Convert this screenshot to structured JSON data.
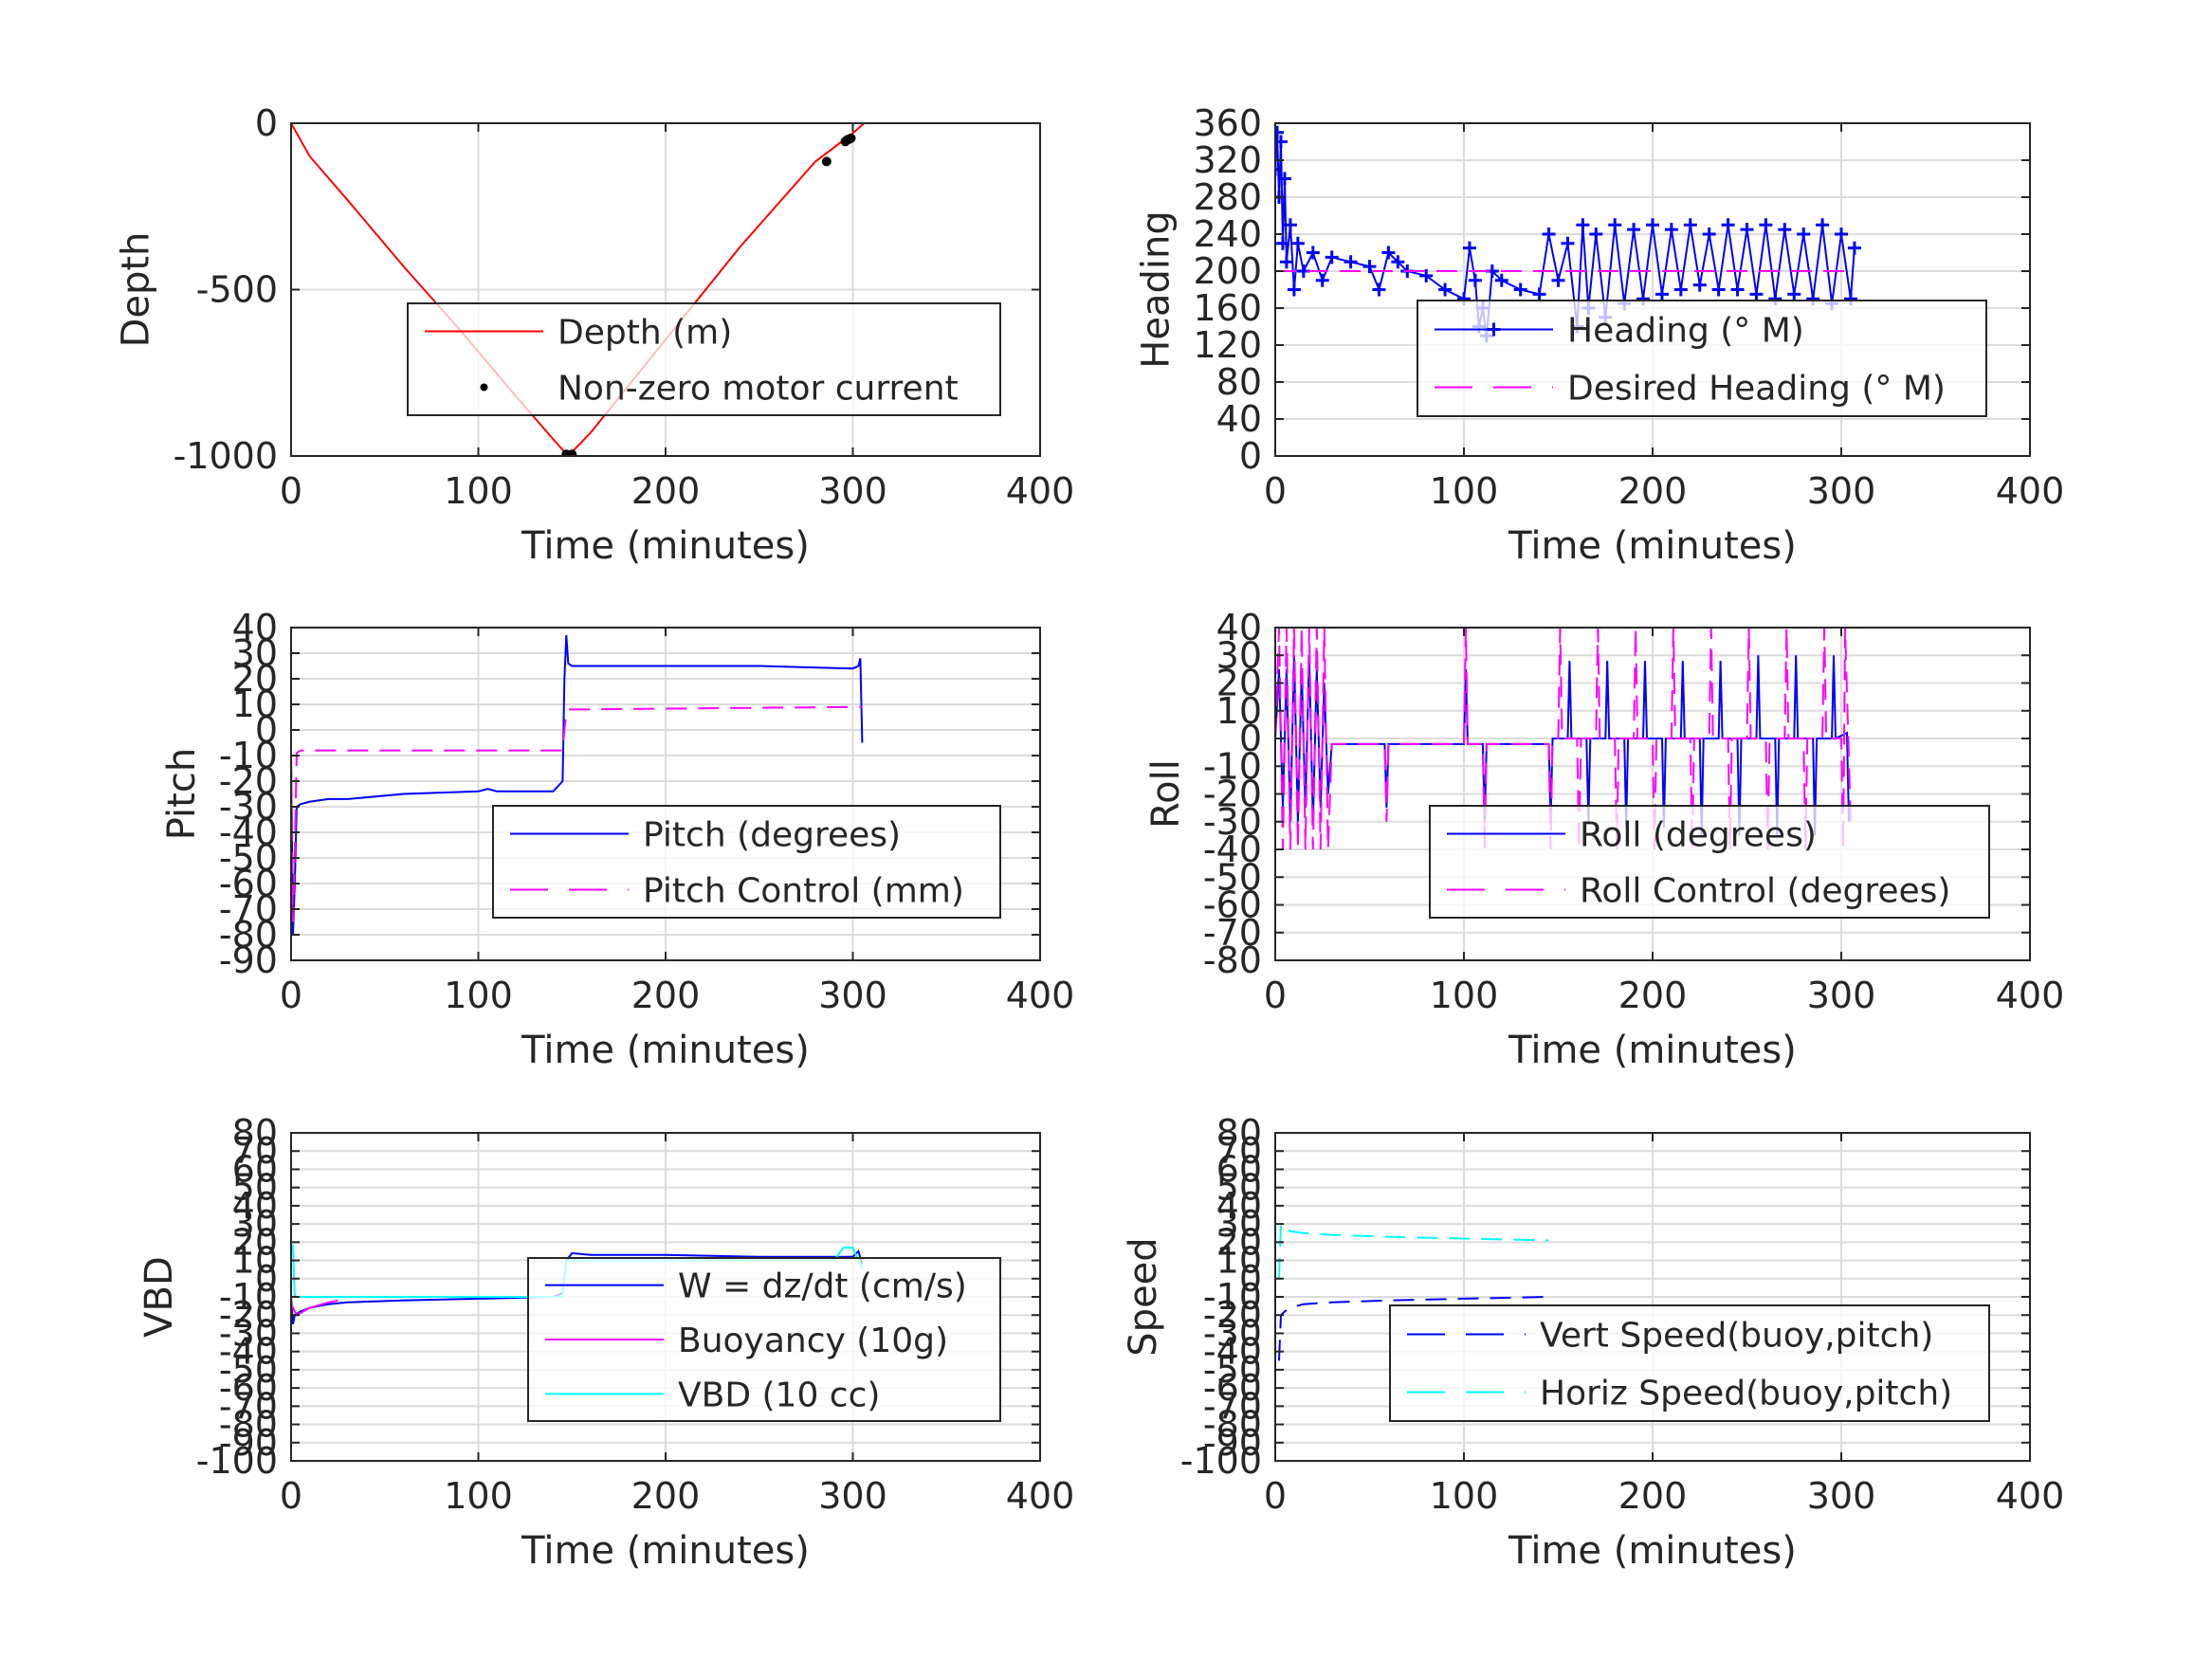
{
  "chart_data": [
    {
      "type": "line",
      "xlabel": "Time (minutes)",
      "ylabel": "Depth",
      "xlim": [
        0,
        400
      ],
      "ylim": [
        -1000,
        0
      ],
      "xticks": [
        0,
        100,
        200,
        300,
        400
      ],
      "yticks": [
        0,
        -500,
        -1000
      ],
      "legend": "center-right",
      "grid": true,
      "series": [
        {
          "name": "Depth (m)",
          "color": "#ff0000",
          "style": "solid",
          "x": [
            0,
            10,
            30,
            60,
            90,
            120,
            140,
            148,
            160,
            200,
            240,
            280,
            300,
            306
          ],
          "y": [
            0,
            -100,
            -230,
            -430,
            -620,
            -820,
            -950,
            -1000,
            -930,
            -650,
            -370,
            -115,
            -30,
            0
          ]
        },
        {
          "name": "Non-zero motor current",
          "color": "#000000",
          "style": "dots",
          "x": [
            147,
            148,
            149,
            150,
            286,
            296,
            297,
            298,
            299
          ],
          "y": [
            -995,
            -1000,
            -1000,
            -995,
            -115,
            -55,
            -50,
            -48,
            -45
          ]
        }
      ]
    },
    {
      "type": "line",
      "xlabel": "Time (minutes)",
      "ylabel": "Heading",
      "xlim": [
        0,
        400
      ],
      "ylim": [
        0,
        360
      ],
      "xticks": [
        0,
        100,
        200,
        300,
        400
      ],
      "yticks": [
        0,
        40,
        80,
        120,
        160,
        200,
        240,
        280,
        320,
        360
      ],
      "legend": "center-right",
      "grid": true,
      "series": [
        {
          "name": "Heading (° M)",
          "color": "#0000ff",
          "style": "plus",
          "x": [
            0,
            1,
            2,
            3,
            4,
            5,
            6,
            8,
            10,
            12,
            15,
            20,
            25,
            30,
            40,
            50,
            55,
            60,
            65,
            70,
            80,
            90,
            100,
            103,
            106,
            108,
            110,
            112,
            115,
            120,
            130,
            140,
            145,
            150,
            155,
            160,
            163,
            166,
            170,
            175,
            180,
            185,
            190,
            195,
            200,
            205,
            210,
            215,
            220,
            225,
            230,
            235,
            240,
            245,
            250,
            255,
            260,
            265,
            270,
            275,
            280,
            285,
            290,
            295,
            300,
            305,
            307
          ],
          "y": [
            310,
            350,
            280,
            340,
            230,
            300,
            210,
            250,
            180,
            230,
            200,
            220,
            190,
            215,
            210,
            205,
            180,
            220,
            210,
            200,
            195,
            180,
            170,
            225,
            190,
            140,
            160,
            130,
            200,
            190,
            180,
            175,
            240,
            190,
            230,
            140,
            250,
            160,
            240,
            150,
            250,
            165,
            245,
            170,
            250,
            175,
            245,
            180,
            250,
            185,
            240,
            180,
            250,
            180,
            245,
            175,
            250,
            170,
            245,
            175,
            240,
            170,
            250,
            165,
            240,
            170,
            225
          ]
        },
        {
          "name": "Desired Heading (° M)",
          "color": "#ff00ff",
          "style": "dashed",
          "x": [
            0,
            307
          ],
          "y": [
            200,
            200
          ]
        }
      ]
    },
    {
      "type": "line",
      "xlabel": "Time (minutes)",
      "ylabel": "Pitch",
      "xlim": [
        0,
        400
      ],
      "ylim": [
        -90,
        40
      ],
      "xticks": [
        0,
        100,
        200,
        300,
        400
      ],
      "yticks": [
        40,
        30,
        20,
        10,
        0,
        -10,
        -20,
        -30,
        -40,
        -50,
        -60,
        -70,
        -80,
        -90
      ],
      "legend": "center-right",
      "grid": true,
      "series": [
        {
          "name": "Pitch (degrees)",
          "color": "#0000ff",
          "style": "solid",
          "x": [
            0,
            1,
            2,
            3,
            5,
            10,
            20,
            30,
            60,
            100,
            105,
            110,
            140,
            145,
            146,
            147,
            148,
            150,
            160,
            200,
            250,
            300,
            303,
            304,
            305
          ],
          "y": [
            -10,
            -80,
            -60,
            -30,
            -29,
            -28,
            -27,
            -27,
            -25,
            -24,
            -23,
            -24,
            -24,
            -20,
            20,
            37,
            26,
            25,
            25,
            25,
            25,
            24,
            25,
            28,
            -5
          ]
        },
        {
          "name": "Pitch Control (mm)",
          "color": "#ff00ff",
          "style": "dashed",
          "x": [
            0,
            1,
            2,
            3,
            5,
            145,
            146,
            147,
            148,
            150,
            305
          ],
          "y": [
            -10,
            -75,
            -50,
            -9,
            -8,
            -8,
            0,
            7,
            8,
            8,
            9
          ]
        }
      ]
    },
    {
      "type": "line",
      "xlabel": "Time (minutes)",
      "ylabel": "Roll",
      "xlim": [
        0,
        400
      ],
      "ylim": [
        -80,
        40
      ],
      "xticks": [
        0,
        100,
        200,
        300,
        400
      ],
      "yticks": [
        40,
        30,
        20,
        10,
        0,
        -10,
        -20,
        -30,
        -40,
        -50,
        -60,
        -70,
        -80
      ],
      "legend": "center-right",
      "grid": true,
      "series": [
        {
          "name": "Roll (degrees)",
          "color": "#0000ff",
          "style": "solid",
          "x": [
            0,
            2,
            4,
            6,
            8,
            10,
            12,
            14,
            16,
            18,
            20,
            22,
            24,
            26,
            28,
            30,
            58,
            59,
            60,
            100,
            101,
            102,
            110,
            111,
            112,
            145,
            146,
            147,
            155,
            156,
            157,
            165,
            166,
            167,
            175,
            176,
            177,
            185,
            186,
            187,
            195,
            196,
            197,
            205,
            206,
            207,
            215,
            216,
            217,
            225,
            226,
            227,
            235,
            236,
            237,
            245,
            246,
            247,
            255,
            256,
            257,
            265,
            266,
            267,
            275,
            276,
            277,
            285,
            286,
            287,
            295,
            296,
            297,
            303,
            304
          ],
          "y": [
            0,
            25,
            -25,
            25,
            -30,
            30,
            -30,
            25,
            -25,
            30,
            -30,
            25,
            -25,
            20,
            -20,
            -2,
            -2,
            -25,
            -2,
            -2,
            25,
            -2,
            -2,
            -30,
            -2,
            -2,
            -30,
            0,
            0,
            28,
            0,
            0,
            -30,
            0,
            0,
            28,
            0,
            0,
            -32,
            0,
            0,
            28,
            0,
            0,
            -32,
            0,
            0,
            28,
            0,
            0,
            -35,
            0,
            0,
            28,
            0,
            0,
            -35,
            0,
            0,
            30,
            0,
            0,
            -35,
            0,
            0,
            30,
            0,
            0,
            -35,
            0,
            0,
            30,
            0,
            2,
            -30
          ]
        },
        {
          "name": "Roll Control (degrees)",
          "color": "#ff00ff",
          "style": "dashed",
          "x": [
            0,
            2,
            4,
            6,
            8,
            10,
            12,
            14,
            16,
            18,
            20,
            22,
            24,
            26,
            28,
            30,
            58,
            59,
            60,
            100,
            101,
            102,
            110,
            111,
            112,
            145,
            146,
            147,
            150,
            151,
            152,
            160,
            161,
            162,
            170,
            171,
            172,
            180,
            181,
            182,
            190,
            191,
            192,
            200,
            201,
            202,
            210,
            211,
            212,
            220,
            221,
            222,
            230,
            231,
            232,
            240,
            241,
            242,
            250,
            251,
            252,
            260,
            261,
            262,
            270,
            271,
            272,
            280,
            281,
            282,
            290,
            291,
            292,
            300,
            301,
            302,
            305
          ],
          "y": [
            0,
            40,
            -40,
            40,
            -40,
            40,
            -40,
            40,
            -40,
            40,
            -40,
            40,
            -40,
            40,
            -40,
            -2,
            -2,
            -30,
            -2,
            -2,
            40,
            -2,
            -2,
            -40,
            -2,
            -2,
            -40,
            0,
            0,
            40,
            0,
            0,
            -40,
            0,
            0,
            40,
            0,
            0,
            -40,
            0,
            0,
            40,
            0,
            0,
            -40,
            0,
            0,
            40,
            0,
            0,
            -40,
            0,
            0,
            40,
            0,
            0,
            -40,
            0,
            0,
            40,
            0,
            0,
            -40,
            0,
            0,
            40,
            0,
            0,
            -40,
            0,
            0,
            40,
            0,
            0,
            -40,
            40,
            -30
          ]
        }
      ]
    },
    {
      "type": "line",
      "xlabel": "Time (minutes)",
      "ylabel": "VBD",
      "xlim": [
        0,
        400
      ],
      "ylim": [
        -100,
        80
      ],
      "xticks": [
        0,
        100,
        200,
        300,
        400
      ],
      "yticks": [
        80,
        70,
        60,
        50,
        40,
        30,
        20,
        10,
        0,
        -10,
        -20,
        -30,
        -40,
        -50,
        -60,
        -70,
        -80,
        -90,
        -100
      ],
      "legend": "center-right",
      "grid": true,
      "series": [
        {
          "name": "W = dz/dt (cm/s)",
          "color": "#0000ff",
          "style": "solid",
          "x": [
            0,
            1,
            2,
            5,
            10,
            20,
            30,
            60,
            100,
            140,
            145,
            147,
            150,
            160,
            200,
            250,
            300,
            303,
            305
          ],
          "y": [
            -10,
            -25,
            -20,
            -18,
            -16,
            -14,
            -13,
            -12,
            -11,
            -10,
            -8,
            10,
            14,
            13,
            13,
            12,
            12,
            15,
            8
          ]
        },
        {
          "name": "Buoyancy (10g)",
          "color": "#ff00ff",
          "style": "solid",
          "x": [
            0,
            3,
            10,
            20,
            25
          ],
          "y": [
            -14,
            -20,
            -16,
            -13,
            -12
          ]
        },
        {
          "name": "VBD (10 cc)",
          "color": "#00ffff",
          "style": "solid",
          "x": [
            0,
            1,
            2,
            5,
            145,
            147,
            150,
            290,
            295,
            300,
            305
          ],
          "y": [
            18,
            18,
            -10,
            -10,
            -10,
            10,
            10,
            10,
            17,
            17,
            5
          ]
        }
      ]
    },
    {
      "type": "line",
      "xlabel": "Time (minutes)",
      "ylabel": "Speed",
      "xlim": [
        0,
        400
      ],
      "ylim": [
        -100,
        80
      ],
      "xticks": [
        0,
        100,
        200,
        300,
        400
      ],
      "yticks": [
        80,
        70,
        60,
        50,
        40,
        30,
        20,
        10,
        0,
        -10,
        -20,
        -30,
        -40,
        -50,
        -60,
        -70,
        -80,
        -90,
        -100
      ],
      "legend": "center-right",
      "grid": true,
      "series": [
        {
          "name": "Vert Speed(buoy,pitch)",
          "color": "#0000ff",
          "style": "dashed",
          "x": [
            2,
            3,
            5,
            8,
            15,
            30,
            60,
            100,
            145
          ],
          "y": [
            -45,
            -20,
            -18,
            -16,
            -14,
            -13,
            -12,
            -11,
            -10
          ]
        },
        {
          "name": "Horiz Speed(buoy,pitch)",
          "color": "#00ffff",
          "style": "dashed",
          "x": [
            2,
            3,
            5,
            8,
            15,
            30,
            60,
            100,
            145
          ],
          "y": [
            0,
            30,
            28,
            26,
            25,
            24,
            23,
            22,
            21
          ]
        }
      ]
    }
  ]
}
